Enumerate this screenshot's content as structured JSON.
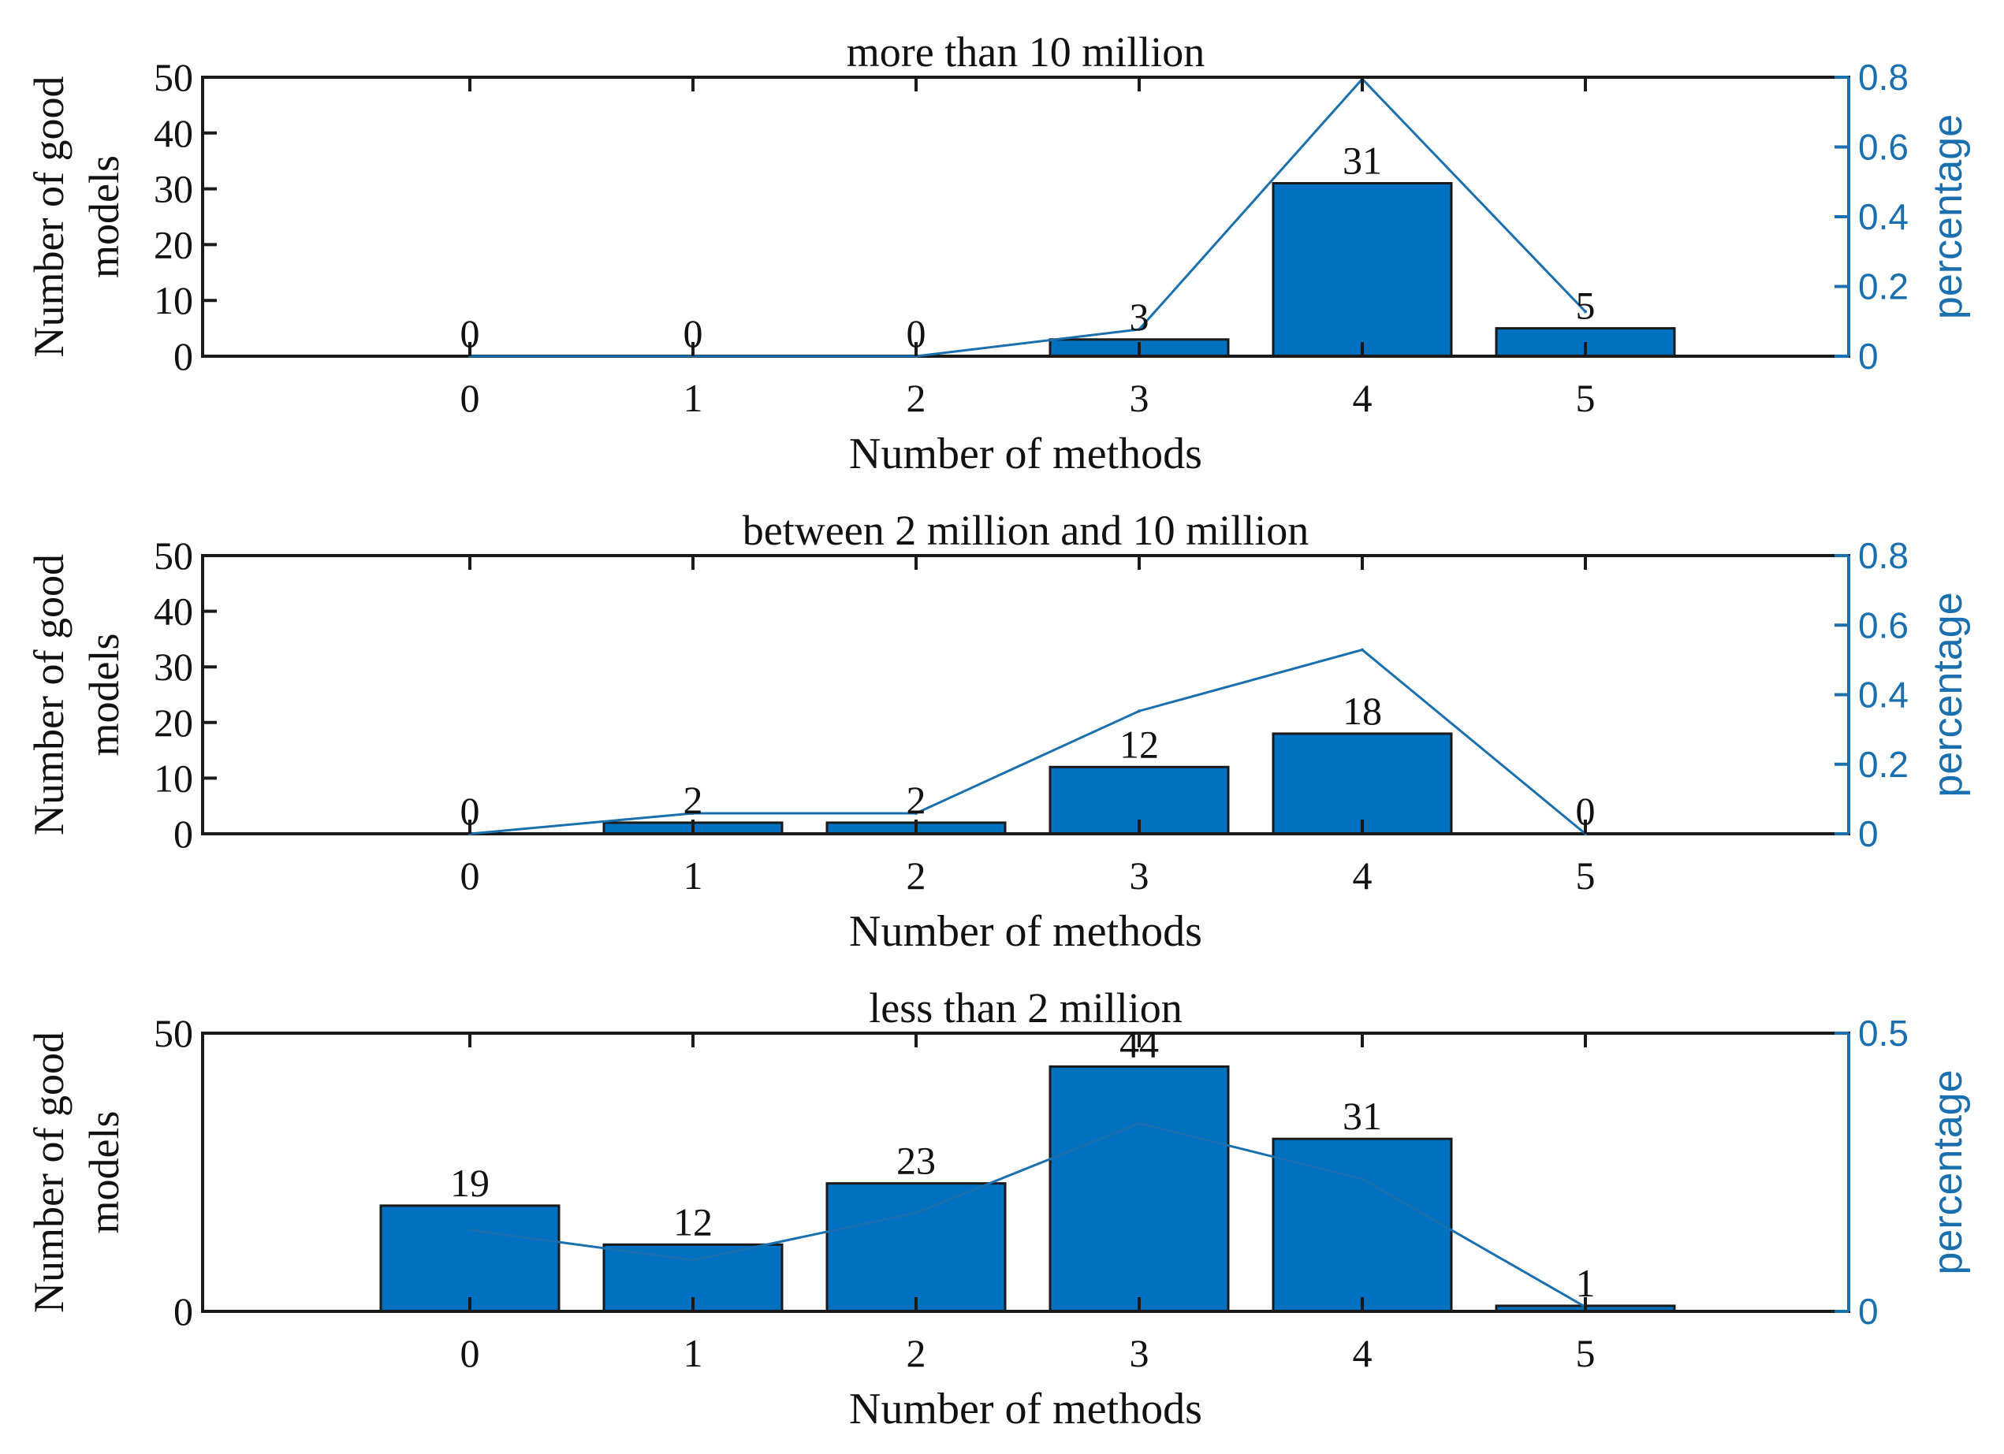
{
  "colors": {
    "bar": "#0070c0",
    "percentage": "#1a6fae",
    "axis": "#1a1a1a"
  },
  "chart_data": [
    {
      "type": "bar",
      "title": "more than 10 million",
      "xlabel": "Number of methods",
      "ylabel": [
        "Number of good",
        "models"
      ],
      "y2label": "percentage",
      "categories": [
        "0",
        "1",
        "2",
        "3",
        "4",
        "5"
      ],
      "values": [
        0,
        0,
        0,
        3,
        31,
        5
      ],
      "data_labels": [
        "0",
        "0",
        "0",
        "3",
        "31",
        "5"
      ],
      "yticks": [
        "0",
        "10",
        "20",
        "30",
        "40",
        "50"
      ],
      "ylim": [
        0,
        50
      ],
      "y2ticks": [
        "0",
        "0.2",
        "0.4",
        "0.6",
        "0.8"
      ],
      "y2lim": [
        0,
        0.8
      ],
      "percentage": [
        0,
        0,
        0,
        0.077,
        0.795,
        0.128
      ]
    },
    {
      "type": "bar",
      "title": "between 2 million and 10 million",
      "xlabel": "Number of methods",
      "ylabel": [
        "Number of good",
        "models"
      ],
      "y2label": "percentage",
      "categories": [
        "0",
        "1",
        "2",
        "3",
        "4",
        "5"
      ],
      "values": [
        0,
        2,
        2,
        12,
        18,
        0
      ],
      "data_labels": [
        "0",
        "2",
        "2",
        "12",
        "18",
        "0"
      ],
      "yticks": [
        "0",
        "10",
        "20",
        "30",
        "40",
        "50"
      ],
      "ylim": [
        0,
        50
      ],
      "y2ticks": [
        "0",
        "0.2",
        "0.4",
        "0.6",
        "0.8"
      ],
      "y2lim": [
        0,
        0.8
      ],
      "percentage": [
        0,
        0.059,
        0.059,
        0.353,
        0.529,
        0
      ]
    },
    {
      "type": "bar",
      "title": "less than 2 million",
      "xlabel": "Number of methods",
      "ylabel": [
        "Number of good",
        "models"
      ],
      "y2label": "percentage",
      "categories": [
        "0",
        "1",
        "2",
        "3",
        "4",
        "5"
      ],
      "values": [
        19,
        12,
        23,
        44,
        31,
        1
      ],
      "data_labels": [
        "19",
        "12",
        "23",
        "44",
        "31",
        "1"
      ],
      "yticks": [
        "0",
        "50"
      ],
      "ylim": [
        0,
        50
      ],
      "y2ticks": [
        "0",
        "0.5"
      ],
      "y2lim": [
        0,
        0.5
      ],
      "percentage": [
        0.146,
        0.092,
        0.177,
        0.338,
        0.238,
        0.008
      ]
    }
  ]
}
